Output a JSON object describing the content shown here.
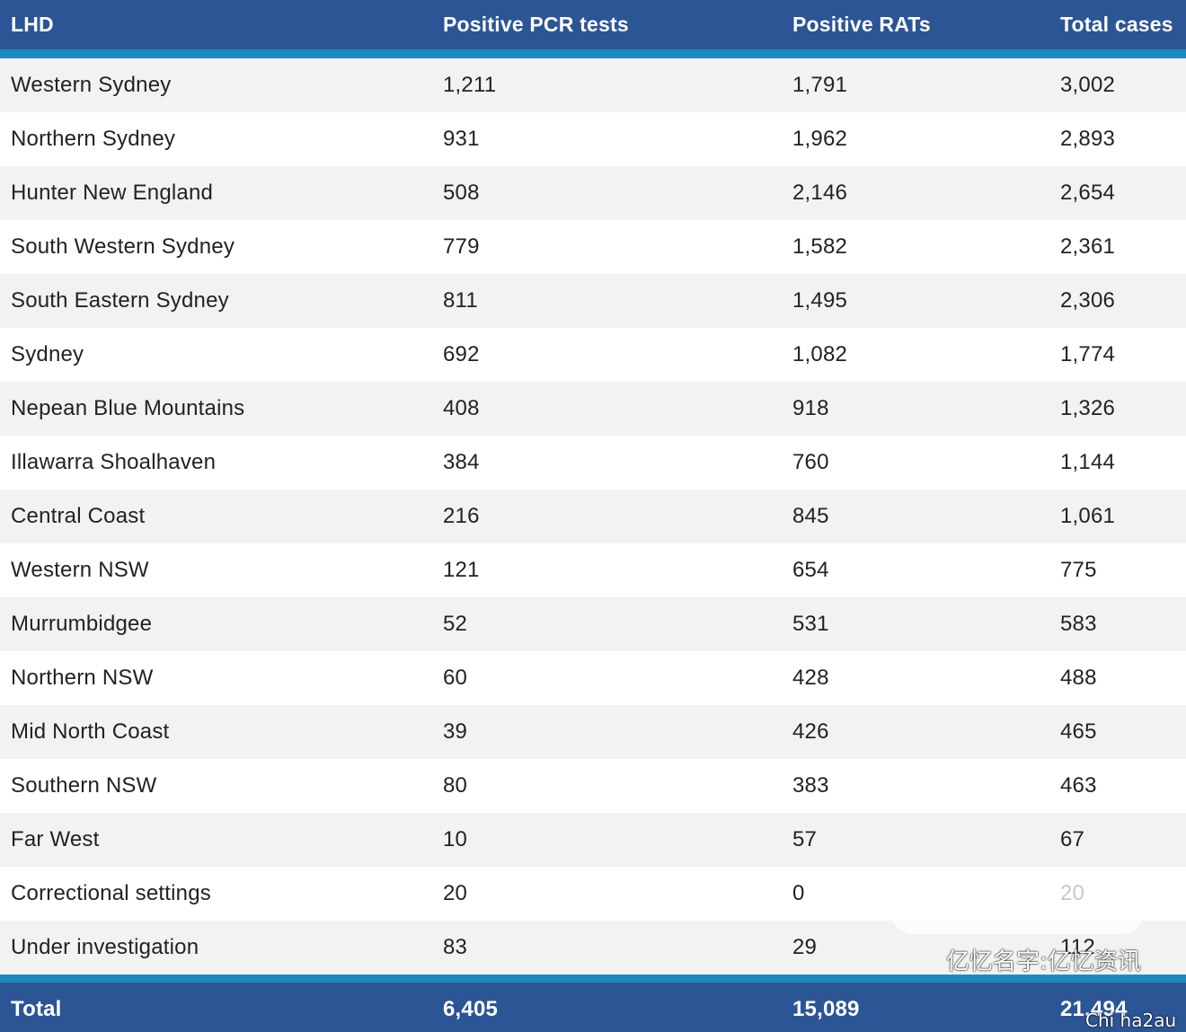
{
  "header": {
    "lhd": "LHD",
    "pcr": "Positive PCR tests",
    "rats": "Positive RATs",
    "total": "Total cases"
  },
  "rows": [
    {
      "lhd": "Western Sydney",
      "pcr": "1,211",
      "rats": "1,791",
      "total": "3,002"
    },
    {
      "lhd": "Northern Sydney",
      "pcr": "931",
      "rats": "1,962",
      "total": "2,893"
    },
    {
      "lhd": "Hunter New England",
      "pcr": "508",
      "rats": "2,146",
      "total": "2,654"
    },
    {
      "lhd": "South Western Sydney",
      "pcr": "779",
      "rats": "1,582",
      "total": "2,361"
    },
    {
      "lhd": "South Eastern Sydney",
      "pcr": "811",
      "rats": "1,495",
      "total": "2,306"
    },
    {
      "lhd": "Sydney",
      "pcr": "692",
      "rats": "1,082",
      "total": "1,774"
    },
    {
      "lhd": "Nepean Blue Mountains",
      "pcr": "408",
      "rats": "918",
      "total": "1,326"
    },
    {
      "lhd": "Illawarra Shoalhaven",
      "pcr": "384",
      "rats": "760",
      "total": "1,144"
    },
    {
      "lhd": "Central Coast",
      "pcr": "216",
      "rats": "845",
      "total": "1,061"
    },
    {
      "lhd": "Western NSW",
      "pcr": "121",
      "rats": "654",
      "total": "775"
    },
    {
      "lhd": "Murrumbidgee",
      "pcr": "52",
      "rats": "531",
      "total": "583"
    },
    {
      "lhd": "Northern NSW",
      "pcr": "60",
      "rats": "428",
      "total": "488"
    },
    {
      "lhd": "Mid North Coast",
      "pcr": "39",
      "rats": "426",
      "total": "465"
    },
    {
      "lhd": "Southern NSW",
      "pcr": "80",
      "rats": "383",
      "total": "463"
    },
    {
      "lhd": "Far West",
      "pcr": "10",
      "rats": "57",
      "total": "67"
    },
    {
      "lhd": "Correctional settings",
      "pcr": "20",
      "rats": "0",
      "total": "20"
    },
    {
      "lhd": "Under investigation",
      "pcr": "83",
      "rats": "29",
      "total": "112"
    }
  ],
  "footer": {
    "lhd": "Total",
    "pcr": "6,405",
    "rats": "15,089",
    "total": "21,494"
  },
  "watermark": {
    "main": "亿忆名字:亿忆资讯",
    "sub": "Chi ha2au"
  },
  "colors": {
    "header_bg": "#2c5596",
    "accent_rule": "#1e8bbf",
    "stripe": "#f2f2f2"
  }
}
